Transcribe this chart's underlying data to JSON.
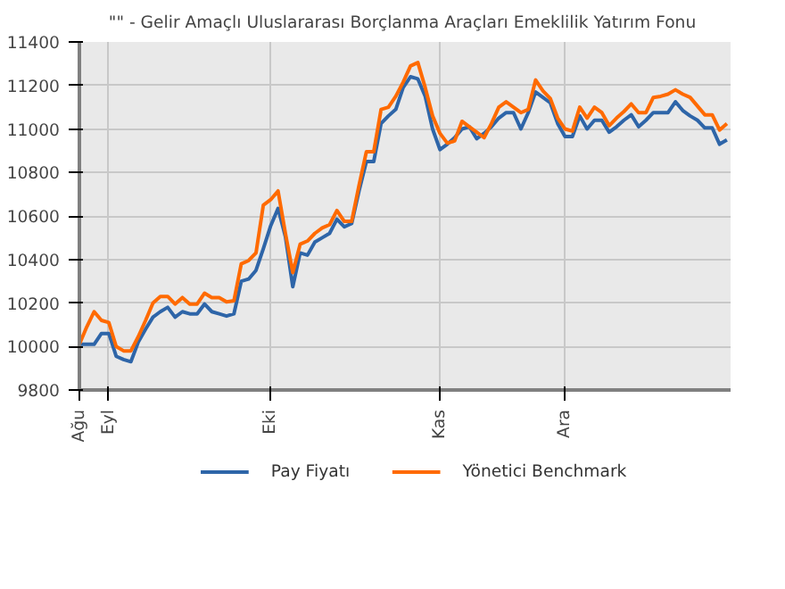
{
  "chart_data": {
    "type": "line",
    "title": "\"\" -  Gelir Amaçlı Uluslararası Borçlanma Araçları Emeklilik Yatırım Fonu",
    "categories": [
      "Ağu",
      null,
      null,
      null,
      "Eyl",
      null,
      null,
      null,
      null,
      null,
      null,
      null,
      null,
      null,
      null,
      null,
      null,
      null,
      null,
      null,
      null,
      null,
      null,
      null,
      null,
      null,
      "Eki",
      null,
      null,
      null,
      null,
      null,
      null,
      null,
      null,
      null,
      null,
      null,
      null,
      null,
      null,
      null,
      null,
      null,
      null,
      null,
      null,
      null,
      null,
      "Kas",
      null,
      null,
      null,
      null,
      null,
      null,
      null,
      null,
      null,
      null,
      null,
      null,
      null,
      null,
      null,
      null,
      "Ara",
      null,
      null,
      null,
      null,
      null,
      null,
      null,
      null,
      null,
      null,
      null,
      null,
      null,
      null,
      null,
      null,
      null,
      null,
      null,
      null,
      null,
      null
    ],
    "ylim": [
      9800,
      11400
    ],
    "yticks": [
      9800,
      10000,
      10200,
      10400,
      10600,
      10800,
      11000,
      11200,
      11400
    ],
    "grid": true,
    "legend": "bottom",
    "line_style": "solid",
    "marker": "none",
    "series": [
      {
        "name": "Pay Fiyatı",
        "color": "#2e65a8",
        "values": [
          10010,
          10010,
          10010,
          10060,
          10060,
          9955,
          9940,
          9930,
          10020,
          10080,
          10135,
          10160,
          10180,
          10135,
          10160,
          10150,
          10150,
          10195,
          10160,
          10150,
          10140,
          10150,
          10300,
          10310,
          10350,
          10450,
          10555,
          10635,
          10505,
          10275,
          10430,
          10420,
          10480,
          10500,
          10520,
          10585,
          10550,
          10565,
          10715,
          10850,
          10850,
          11025,
          11060,
          11090,
          11190,
          11240,
          11230,
          11150,
          11000,
          10905,
          10930,
          10960,
          11000,
          11010,
          10955,
          10980,
          11010,
          11050,
          11075,
          11075,
          11000,
          11075,
          11170,
          11145,
          11120,
          11025,
          10965,
          10965,
          11060,
          11000,
          11040,
          11040,
          10985,
          11010,
          11040,
          11065,
          11010,
          11040,
          11075,
          11075,
          11075,
          11125,
          11085,
          11060,
          11040,
          11005,
          11005,
          10930,
          10950
        ]
      },
      {
        "name": "Yönetici Benchmark",
        "color": "#ff6a00",
        "values": [
          10010,
          10090,
          10160,
          10120,
          10110,
          10000,
          9980,
          9980,
          10045,
          10120,
          10200,
          10230,
          10230,
          10195,
          10225,
          10195,
          10195,
          10245,
          10225,
          10225,
          10205,
          10210,
          10380,
          10395,
          10430,
          10650,
          10675,
          10715,
          10520,
          10340,
          10470,
          10485,
          10520,
          10545,
          10560,
          10625,
          10575,
          10575,
          10740,
          10895,
          10895,
          11090,
          11100,
          11150,
          11215,
          11290,
          11305,
          11190,
          11060,
          10980,
          10935,
          10945,
          11035,
          11010,
          10985,
          10960,
          11025,
          11100,
          11125,
          11100,
          11075,
          11090,
          11225,
          11175,
          11140,
          11050,
          11000,
          10990,
          11100,
          11050,
          11100,
          11075,
          11015,
          11050,
          11080,
          11115,
          11075,
          11075,
          11145,
          11150,
          11160,
          11180,
          11160,
          11145,
          11105,
          11065,
          11065,
          10995,
          11025
        ]
      }
    ]
  }
}
